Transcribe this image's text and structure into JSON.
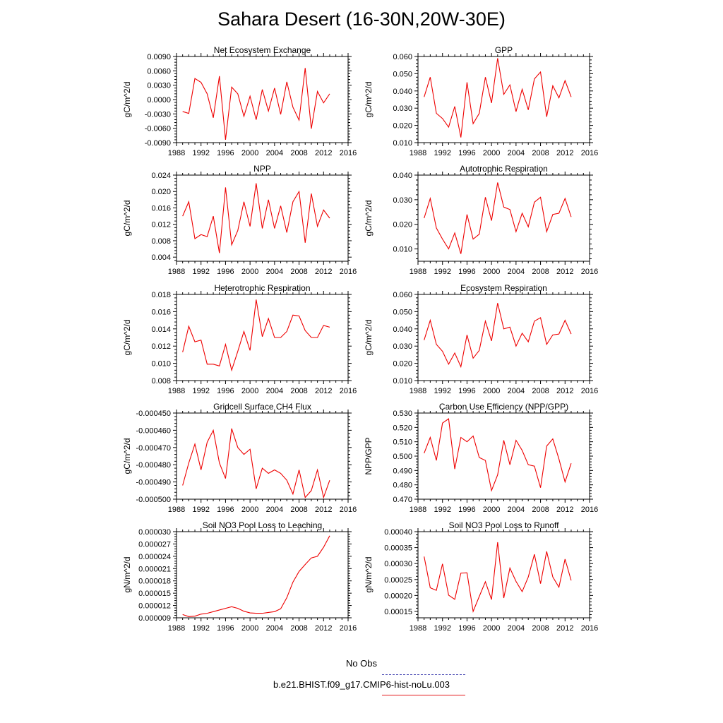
{
  "title": "Sahara Desert (16-30N,20W-30E)",
  "legend": {
    "entries": [
      {
        "label": "No Obs",
        "color": "#4b4bb4",
        "style": "dashed"
      },
      {
        "label": "b.e21.BHIST.f09_g17.CMIP6-hist-noLu.003",
        "color": "#e41a1c",
        "style": "solid"
      }
    ]
  },
  "colors": {
    "series": "#ee0000",
    "axis": "#000000"
  },
  "chart_data": [
    {
      "type": "line",
      "title": "Net Ecosystem Exchange",
      "ylabel": "gC/m^2/d",
      "xlim": [
        1988,
        2016
      ],
      "ylim": [
        -0.009,
        0.009
      ],
      "xticks": [
        1988,
        1992,
        1996,
        2000,
        2004,
        2008,
        2012,
        2016
      ],
      "yticks": [
        "-0.0090",
        "-0.0060",
        "-0.0030",
        "0.0000",
        "0.0030",
        "0.0060",
        "0.0090"
      ],
      "x": [
        1989,
        1990,
        1991,
        1992,
        1993,
        1994,
        1995,
        1996,
        1997,
        1998,
        1999,
        2000,
        2001,
        2002,
        2003,
        2004,
        2005,
        2006,
        2007,
        2008,
        2009,
        2010,
        2011,
        2012,
        2013
      ],
      "y": [
        -0.0025,
        -0.0029,
        0.0044,
        0.0036,
        0.0012,
        -0.0038,
        0.0049,
        -0.0084,
        0.0026,
        0.0012,
        -0.0035,
        0.0007,
        -0.0042,
        0.0021,
        -0.0024,
        0.0024,
        -0.0031,
        0.0037,
        -0.0016,
        -0.0043,
        0.0066,
        -0.0061,
        0.0017,
        -0.0007,
        0.0012
      ]
    },
    {
      "type": "line",
      "title": "GPP",
      "ylabel": "gC/m^2/d",
      "xlim": [
        1988,
        2016
      ],
      "ylim": [
        0.01,
        0.06
      ],
      "xticks": [
        1988,
        1992,
        1996,
        2000,
        2004,
        2008,
        2012,
        2016
      ],
      "yticks": [
        "0.010",
        "0.020",
        "0.030",
        "0.040",
        "0.050",
        "0.060"
      ],
      "x": [
        1989,
        1990,
        1991,
        1992,
        1993,
        1994,
        1995,
        1996,
        1997,
        1998,
        1999,
        2000,
        2001,
        2002,
        2003,
        2004,
        2005,
        2006,
        2007,
        2008,
        2009,
        2010,
        2011,
        2012,
        2013
      ],
      "y": [
        0.0365,
        0.048,
        0.027,
        0.024,
        0.019,
        0.031,
        0.013,
        0.045,
        0.021,
        0.027,
        0.048,
        0.033,
        0.059,
        0.038,
        0.0435,
        0.028,
        0.041,
        0.029,
        0.047,
        0.051,
        0.025,
        0.043,
        0.036,
        0.046,
        0.0365
      ]
    },
    {
      "type": "line",
      "title": "NPP",
      "ylabel": "gC/m^2/d",
      "xlim": [
        1988,
        2016
      ],
      "ylim": [
        0.003,
        0.024
      ],
      "xticks": [
        1988,
        1992,
        1996,
        2000,
        2004,
        2008,
        2012,
        2016
      ],
      "yticks": [
        "0.004",
        "0.008",
        "0.012",
        "0.016",
        "0.020",
        "0.024"
      ],
      "x": [
        1989,
        1990,
        1991,
        1992,
        1993,
        1994,
        1995,
        1996,
        1997,
        1998,
        1999,
        2000,
        2001,
        2002,
        2003,
        2004,
        2005,
        2006,
        2007,
        2008,
        2009,
        2010,
        2011,
        2012,
        2013
      ],
      "y": [
        0.014,
        0.0175,
        0.0085,
        0.0095,
        0.009,
        0.014,
        0.005,
        0.021,
        0.007,
        0.0105,
        0.0175,
        0.0115,
        0.022,
        0.011,
        0.018,
        0.011,
        0.0165,
        0.01,
        0.0175,
        0.02,
        0.0075,
        0.0195,
        0.0115,
        0.0155,
        0.0135
      ]
    },
    {
      "type": "line",
      "title": "Autotrophic Respiration",
      "ylabel": "gC/m^2/d",
      "xlim": [
        1988,
        2016
      ],
      "ylim": [
        0.005,
        0.04
      ],
      "xticks": [
        1988,
        1992,
        1996,
        2000,
        2004,
        2008,
        2012,
        2016
      ],
      "yticks": [
        "0.010",
        "0.020",
        "0.030",
        "0.040"
      ],
      "x": [
        1989,
        1990,
        1991,
        1992,
        1993,
        1994,
        1995,
        1996,
        1997,
        1998,
        1999,
        2000,
        2001,
        2002,
        2003,
        2004,
        2005,
        2006,
        2007,
        2008,
        2009,
        2010,
        2011,
        2012,
        2013
      ],
      "y": [
        0.0225,
        0.0305,
        0.0185,
        0.014,
        0.01,
        0.0165,
        0.008,
        0.024,
        0.014,
        0.016,
        0.031,
        0.0215,
        0.037,
        0.027,
        0.026,
        0.017,
        0.0245,
        0.019,
        0.029,
        0.031,
        0.017,
        0.024,
        0.0245,
        0.0305,
        0.023
      ]
    },
    {
      "type": "line",
      "title": "Heterotrophic Respiration",
      "ylabel": "gC/m^2/d",
      "xlim": [
        1988,
        2016
      ],
      "ylim": [
        0.008,
        0.018
      ],
      "xticks": [
        1988,
        1992,
        1996,
        2000,
        2004,
        2008,
        2012,
        2016
      ],
      "yticks": [
        "0.008",
        "0.010",
        "0.012",
        "0.014",
        "0.016",
        "0.018"
      ],
      "x": [
        1989,
        1990,
        1991,
        1992,
        1993,
        1994,
        1995,
        1996,
        1997,
        1998,
        1999,
        2000,
        2001,
        2002,
        2003,
        2004,
        2005,
        2006,
        2007,
        2008,
        2009,
        2010,
        2011,
        2012,
        2013
      ],
      "y": [
        0.0113,
        0.0143,
        0.0125,
        0.0127,
        0.0099,
        0.0099,
        0.0097,
        0.0122,
        0.0092,
        0.0114,
        0.0137,
        0.0115,
        0.0174,
        0.0131,
        0.0152,
        0.013,
        0.013,
        0.0137,
        0.0156,
        0.0155,
        0.0138,
        0.013,
        0.013,
        0.0144,
        0.0142
      ]
    },
    {
      "type": "line",
      "title": "Ecosystem Respiration",
      "ylabel": "gC/m^2/d",
      "xlim": [
        1988,
        2016
      ],
      "ylim": [
        0.01,
        0.06
      ],
      "xticks": [
        1988,
        1992,
        1996,
        2000,
        2004,
        2008,
        2012,
        2016
      ],
      "yticks": [
        "0.010",
        "0.020",
        "0.030",
        "0.040",
        "0.050",
        "0.060"
      ],
      "x": [
        1989,
        1990,
        1991,
        1992,
        1993,
        1994,
        1995,
        1996,
        1997,
        1998,
        1999,
        2000,
        2001,
        2002,
        2003,
        2004,
        2005,
        2006,
        2007,
        2008,
        2009,
        2010,
        2011,
        2012,
        2013
      ],
      "y": [
        0.0335,
        0.045,
        0.031,
        0.027,
        0.0195,
        0.026,
        0.018,
        0.0365,
        0.023,
        0.0275,
        0.0445,
        0.033,
        0.055,
        0.04,
        0.041,
        0.03,
        0.0375,
        0.0325,
        0.0445,
        0.0465,
        0.031,
        0.0365,
        0.037,
        0.045,
        0.037
      ]
    },
    {
      "type": "line",
      "title": "Gridcell Surface CH4 Flux",
      "ylabel": "gC/m^2/d",
      "xlim": [
        1988,
        2016
      ],
      "ylim": [
        -0.0005,
        -0.00045
      ],
      "xticks": [
        1988,
        1992,
        1996,
        2000,
        2004,
        2008,
        2012,
        2016
      ],
      "yticks": [
        "-0.000500",
        "-0.000490",
        "-0.000480",
        "-0.000470",
        "-0.000460",
        "-0.000450"
      ],
      "x": [
        1989,
        1990,
        1991,
        1992,
        1993,
        1994,
        1995,
        1996,
        1997,
        1998,
        1999,
        2000,
        2001,
        2002,
        2003,
        2004,
        2005,
        2006,
        2007,
        2008,
        2009,
        2010,
        2011,
        2012,
        2013
      ],
      "y": [
        -0.000492,
        -0.000479,
        -0.000468,
        -0.000483,
        -0.000467,
        -0.00046,
        -0.000479,
        -0.000488,
        -0.000459,
        -0.00047,
        -0.000474,
        -0.000471,
        -0.000494,
        -0.000482,
        -0.000485,
        -0.000483,
        -0.000485,
        -0.000489,
        -0.000497,
        -0.000483,
        -0.000499,
        -0.000495,
        -0.000483,
        -0.000499,
        -0.000489
      ]
    },
    {
      "type": "line",
      "title": "Carbon Use Efficiency (NPP/GPP)",
      "ylabel": "NPP/GPP",
      "xlim": [
        1988,
        2016
      ],
      "ylim": [
        0.47,
        0.53
      ],
      "xticks": [
        1988,
        1992,
        1996,
        2000,
        2004,
        2008,
        2012,
        2016
      ],
      "yticks": [
        "0.470",
        "0.480",
        "0.490",
        "0.500",
        "0.510",
        "0.520",
        "0.530"
      ],
      "x": [
        1989,
        1990,
        1991,
        1992,
        1993,
        1994,
        1995,
        1996,
        1997,
        1998,
        1999,
        2000,
        2001,
        2002,
        2003,
        2004,
        2005,
        2006,
        2007,
        2008,
        2009,
        2010,
        2011,
        2012,
        2013
      ],
      "y": [
        0.502,
        0.513,
        0.497,
        0.523,
        0.526,
        0.491,
        0.513,
        0.51,
        0.514,
        0.499,
        0.497,
        0.476,
        0.487,
        0.511,
        0.494,
        0.511,
        0.504,
        0.494,
        0.493,
        0.478,
        0.507,
        0.512,
        0.498,
        0.482,
        0.495
      ]
    },
    {
      "type": "line",
      "title": "Soil NO3 Pool Loss to Leaching",
      "ylabel": "gN/m^2/d",
      "xlim": [
        1988,
        2016
      ],
      "ylim": [
        9e-06,
        3e-05
      ],
      "xticks": [
        1988,
        1992,
        1996,
        2000,
        2004,
        2008,
        2012,
        2016
      ],
      "yticks": [
        "0.000009",
        "0.000012",
        "0.000015",
        "0.000018",
        "0.000021",
        "0.000024",
        "0.000027",
        "0.000030"
      ],
      "x": [
        1989,
        1990,
        1991,
        1992,
        1993,
        1994,
        1995,
        1996,
        1997,
        1998,
        1999,
        2000,
        2001,
        2002,
        2003,
        2004,
        2005,
        2006,
        2007,
        2008,
        2009,
        2010,
        2011,
        2012,
        2013
      ],
      "y": [
        9.8e-06,
        9.3e-06,
        9.4e-06,
        9.9e-06,
        1.01e-05,
        1.05e-05,
        1.09e-05,
        1.13e-05,
        1.17e-05,
        1.13e-05,
        1.06e-05,
        1.02e-05,
        1.01e-05,
        1.01e-05,
        1.03e-05,
        1.05e-05,
        1.12e-05,
        1.39e-05,
        1.77e-05,
        2.03e-05,
        2.2e-05,
        2.36e-05,
        2.4e-05,
        2.62e-05,
        2.9e-05
      ]
    },
    {
      "type": "line",
      "title": "Soil NO3 Pool Loss to Runoff",
      "ylabel": "gN/m^2/d",
      "xlim": [
        1988,
        2016
      ],
      "ylim": [
        0.00013,
        0.0004
      ],
      "xticks": [
        1988,
        1992,
        1996,
        2000,
        2004,
        2008,
        2012,
        2016
      ],
      "yticks": [
        "0.00015",
        "0.00020",
        "0.00025",
        "0.00030",
        "0.00035",
        "0.00040"
      ],
      "x": [
        1989,
        1990,
        1991,
        1992,
        1993,
        1994,
        1995,
        1996,
        1997,
        1998,
        1999,
        2000,
        2001,
        2002,
        2003,
        2004,
        2005,
        2006,
        2007,
        2008,
        2009,
        2010,
        2011,
        2012,
        2013
      ],
      "y": [
        0.000322,
        0.000224,
        0.000216,
        0.000299,
        0.000201,
        0.000188,
        0.00027,
        0.000271,
        0.00015,
        0.000197,
        0.000243,
        0.000187,
        0.000367,
        0.000192,
        0.000286,
        0.000244,
        0.000212,
        0.000258,
        0.000329,
        0.000237,
        0.000338,
        0.000258,
        0.000226,
        0.000314,
        0.000247
      ]
    }
  ]
}
